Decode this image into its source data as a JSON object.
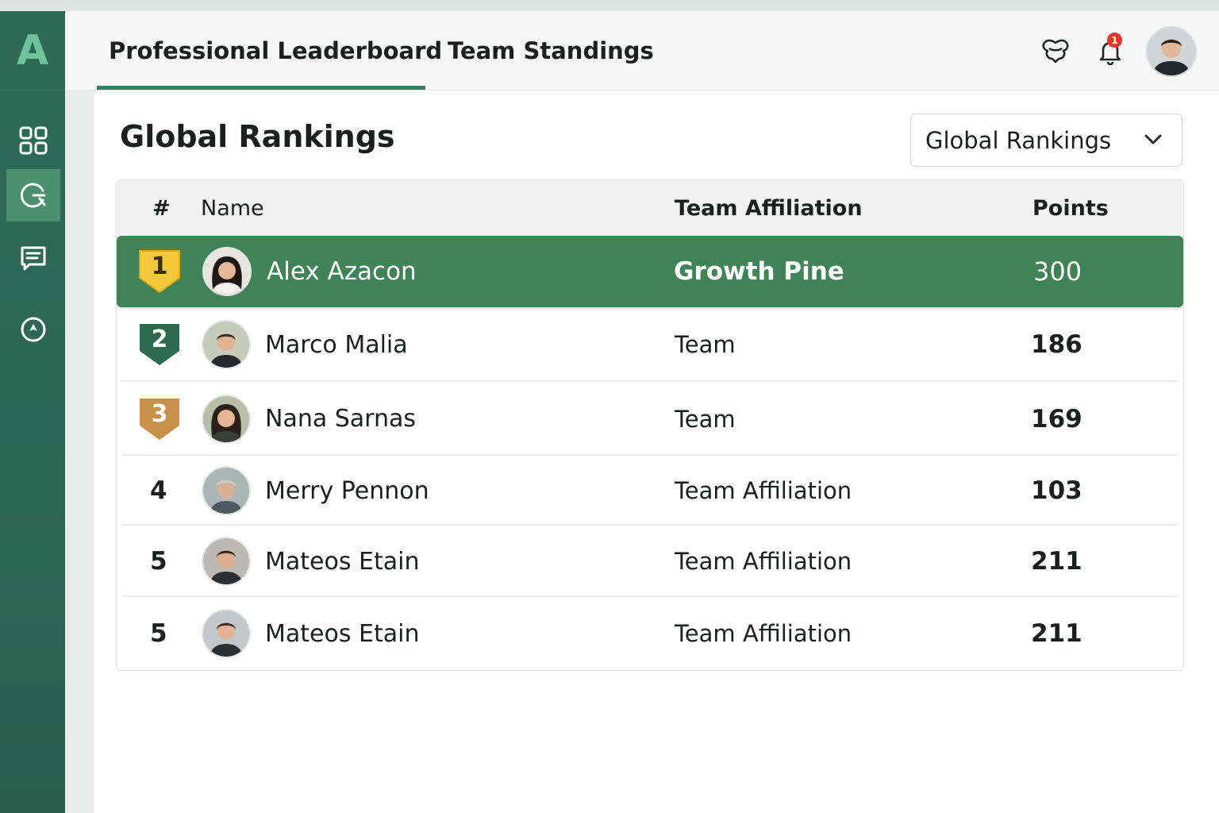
{
  "app": {
    "logo_letter": "A"
  },
  "sidebar": {
    "items": [
      {
        "name": "dashboard",
        "icon": "grid-icon"
      },
      {
        "name": "rankings",
        "icon": "search-chart-icon",
        "active": true
      },
      {
        "name": "messages",
        "icon": "message-icon"
      },
      {
        "name": "explore",
        "icon": "compass-icon"
      }
    ]
  },
  "header": {
    "tabs": [
      {
        "label": "Professional Leaderboard",
        "active": true
      },
      {
        "label": "Team Standings",
        "active": false
      }
    ],
    "notifications_count": "1"
  },
  "main": {
    "title": "Global Rankings",
    "filter": {
      "selected": "Global Rankings"
    },
    "table": {
      "columns": {
        "rank": "#",
        "name": "Name",
        "team": "Team Affiliation",
        "points": "Points"
      },
      "rows": [
        {
          "rank": "1",
          "name": "Alex Azacon",
          "team": "Growth Pine",
          "points": "300",
          "medal": "gold",
          "highlight": true
        },
        {
          "rank": "2",
          "name": "Marco Malia",
          "team": "Team",
          "points": "186",
          "medal": "green"
        },
        {
          "rank": "3",
          "name": "Nana Sarnas",
          "team": "Team",
          "points": "169",
          "medal": "bronze"
        },
        {
          "rank": "4",
          "name": "Merry Pennon",
          "team": "Team Affiliation",
          "points": "103"
        },
        {
          "rank": "5",
          "name": "Mateos Etain",
          "team": "Team Affiliation",
          "points": "211"
        },
        {
          "rank": "5",
          "name": "Mateos Etain",
          "team": "Team Affiliation",
          "points": "211"
        }
      ]
    }
  },
  "colors": {
    "sidebar": "#2f6a57",
    "accent": "#3f8356",
    "gold": "#f1c93b",
    "green_medal": "#2f6a50",
    "bronze": "#c8914a"
  }
}
